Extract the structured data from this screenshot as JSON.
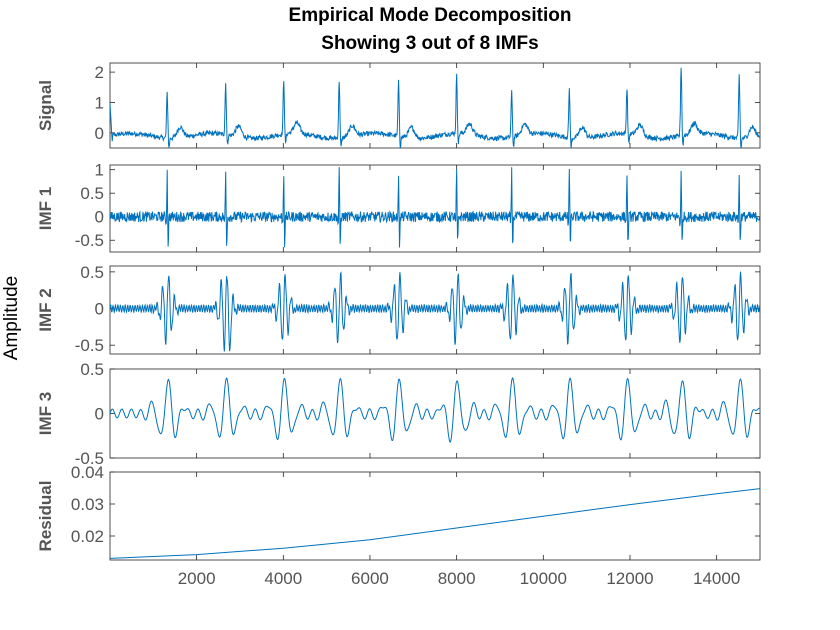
{
  "figure": {
    "title_line1": "Empirical Mode Decomposition",
    "title_line2": "Showing 3 out of 8 IMFs",
    "ylabel": "Amplitude"
  },
  "chart_data": {
    "type": "line",
    "title": "Empirical Mode Decomposition",
    "subtitle": "Showing 3 out of 8 IMFs",
    "ylabel": "Amplitude",
    "xlim": [
      1,
      15000
    ],
    "xticks": [
      2000,
      4000,
      6000,
      8000,
      10000,
      12000,
      14000
    ],
    "line_color": "#0072BD",
    "sample_rate_hint": "ECG-like, ~15000 samples",
    "beat_positions": [
      1320,
      2670,
      4010,
      5290,
      6660,
      8000,
      9270,
      10600,
      11930,
      13180,
      14520
    ],
    "panels": [
      {
        "ylabel": "Signal",
        "ylim": [
          -0.5,
          2.3
        ],
        "yticks": [
          0,
          1,
          2
        ],
        "ytick_labels": [
          "0",
          "1",
          "2"
        ],
        "summary": {
          "baseline": -0.1,
          "peak_range": [
            1.3,
            2.3
          ],
          "min": -0.5
        }
      },
      {
        "ylabel": "IMF 1",
        "ylim": [
          -0.75,
          1.1
        ],
        "yticks": [
          -0.5,
          0,
          0.5,
          1
        ],
        "ytick_labels": [
          "-0.5",
          "0",
          "0.5",
          "1"
        ],
        "summary": {
          "noise_amplitude": 0.1,
          "spike_high": 1.0,
          "spike_low": -0.7
        }
      },
      {
        "ylabel": "IMF 2",
        "ylim": [
          -0.62,
          0.58
        ],
        "yticks": [
          -0.5,
          0,
          0.5
        ],
        "ytick_labels": [
          "-0.5",
          "0",
          "0.5"
        ],
        "summary": {
          "oscillation_amplitude": 0.5,
          "background_amplitude": 0.08
        }
      },
      {
        "ylabel": "IMF 3",
        "ylim": [
          -0.5,
          0.5
        ],
        "yticks": [
          -0.5,
          0,
          0.5
        ],
        "ytick_labels": [
          "-0.5",
          "0",
          "0.5"
        ],
        "summary": {
          "oscillation_amplitude": 0.35
        }
      },
      {
        "ylabel": "Residual",
        "ylim": [
          0.0125,
          0.04
        ],
        "yticks": [
          0.02,
          0.03,
          0.04
        ],
        "ytick_labels": [
          "0.02",
          "0.03",
          "0.04"
        ],
        "residual": {
          "x": [
            1,
            2000,
            4000,
            6000,
            8000,
            10000,
            12000,
            14000,
            15000
          ],
          "y": [
            0.013,
            0.0142,
            0.0162,
            0.0188,
            0.0225,
            0.0262,
            0.0298,
            0.0332,
            0.0348
          ]
        }
      }
    ]
  }
}
